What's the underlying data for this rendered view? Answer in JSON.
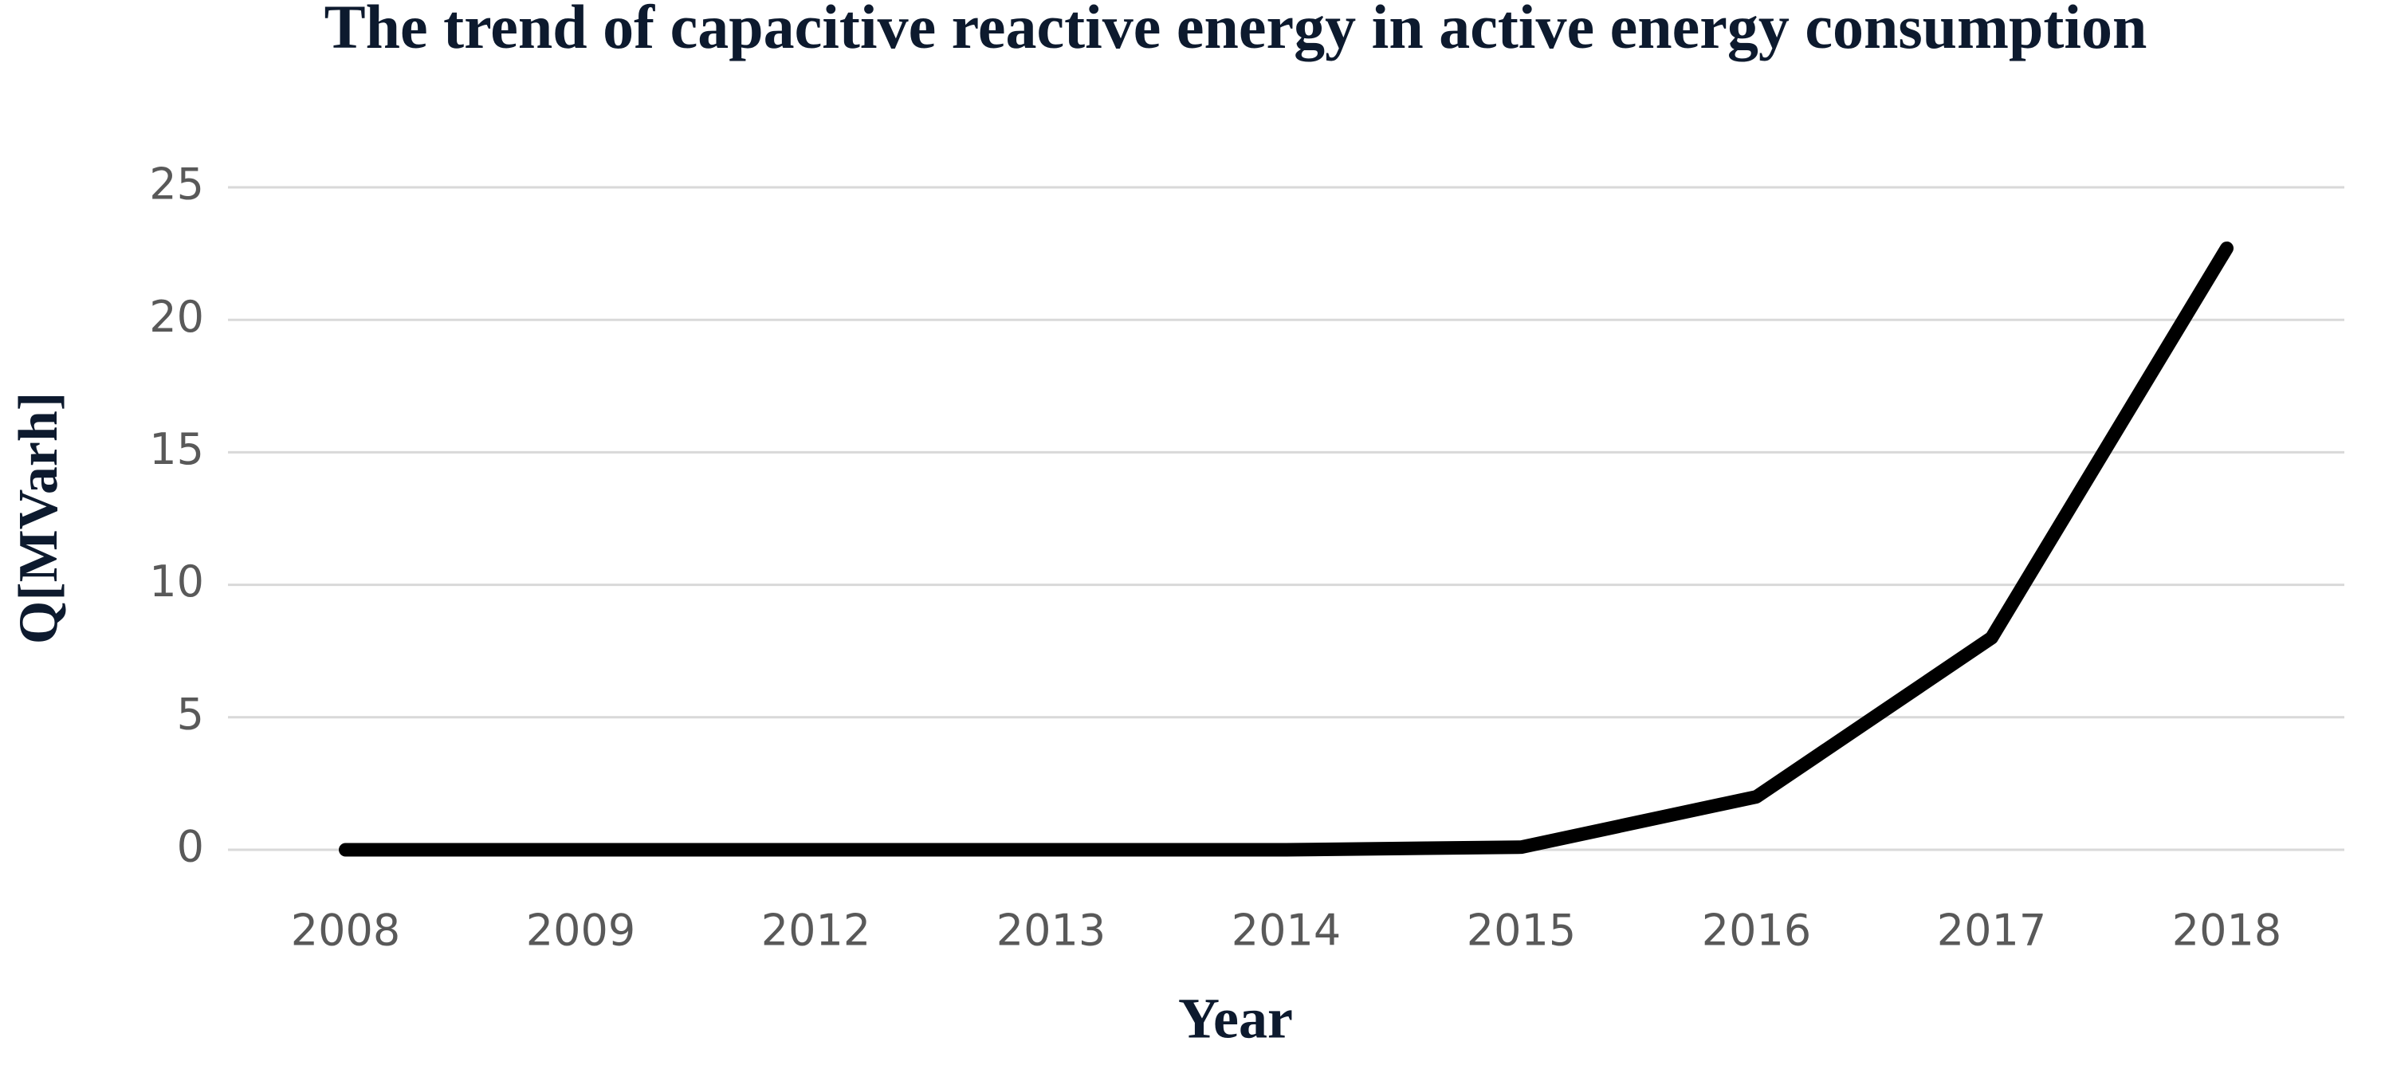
{
  "chart_data": {
    "type": "line",
    "title": "The trend of capacitive reactive energy in active energy consumption",
    "x_label": "Year",
    "y_label": "Q[MVarh]",
    "categories": [
      "2008",
      "2009",
      "2012",
      "2013",
      "2014",
      "2015",
      "2016",
      "2017",
      "2018"
    ],
    "values": [
      0,
      0,
      0,
      0,
      0,
      0.1,
      2,
      8,
      22.7
    ],
    "color": "#000000",
    "ylim": [
      0,
      25
    ],
    "yticks": [
      0,
      5,
      10,
      15,
      20,
      25
    ],
    "grid": true
  }
}
